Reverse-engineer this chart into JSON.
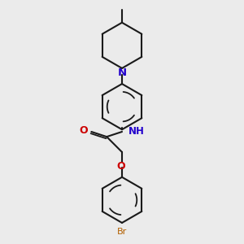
{
  "background_color": "#ebebeb",
  "bond_color": "#1a1a1a",
  "N_color": "#2200cc",
  "NH_color": "#2200cc",
  "O_color": "#cc0000",
  "Br_color": "#b36000",
  "figsize": [
    3.0,
    3.0
  ],
  "dpi": 100,
  "xlim": [
    -2.5,
    2.5
  ],
  "ylim": [
    -3.8,
    4.8
  ]
}
